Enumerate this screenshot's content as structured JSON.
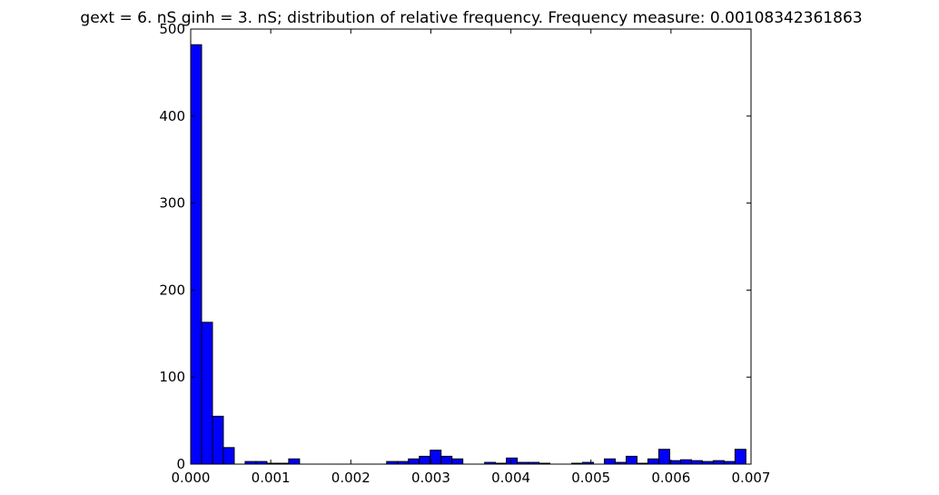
{
  "chart_data": {
    "type": "bar",
    "title": "gext = 6. nS ginh = 3. nS; distribution of relative frequency. Frequency measure: 0.00108342361863",
    "xlabel": "",
    "ylabel": "",
    "xlim": [
      0.0,
      0.007
    ],
    "ylim": [
      0,
      500
    ],
    "xticks": [
      0.0,
      0.001,
      0.002,
      0.003,
      0.004,
      0.005,
      0.006,
      0.007
    ],
    "xtick_labels": [
      "0.000",
      "0.001",
      "0.002",
      "0.003",
      "0.004",
      "0.005",
      "0.006",
      "0.007"
    ],
    "yticks": [
      0,
      100,
      200,
      300,
      400,
      500
    ],
    "ytick_labels": [
      "0",
      "100",
      "200",
      "300",
      "400",
      "500"
    ],
    "grid": false,
    "bar_color": "#0000ff",
    "bin_width": 0.000136,
    "bin_start": 0.0,
    "values": [
      482,
      163,
      55,
      19,
      0,
      3,
      3,
      1,
      1,
      6,
      0,
      0,
      0,
      0,
      0,
      0,
      0,
      0,
      3,
      3,
      6,
      9,
      16,
      9,
      6,
      0,
      0,
      2,
      1,
      7,
      2,
      2,
      1,
      0,
      0,
      1,
      2,
      0,
      6,
      2,
      9,
      1,
      6,
      17,
      4,
      5,
      4,
      3,
      4,
      3,
      17
    ]
  }
}
